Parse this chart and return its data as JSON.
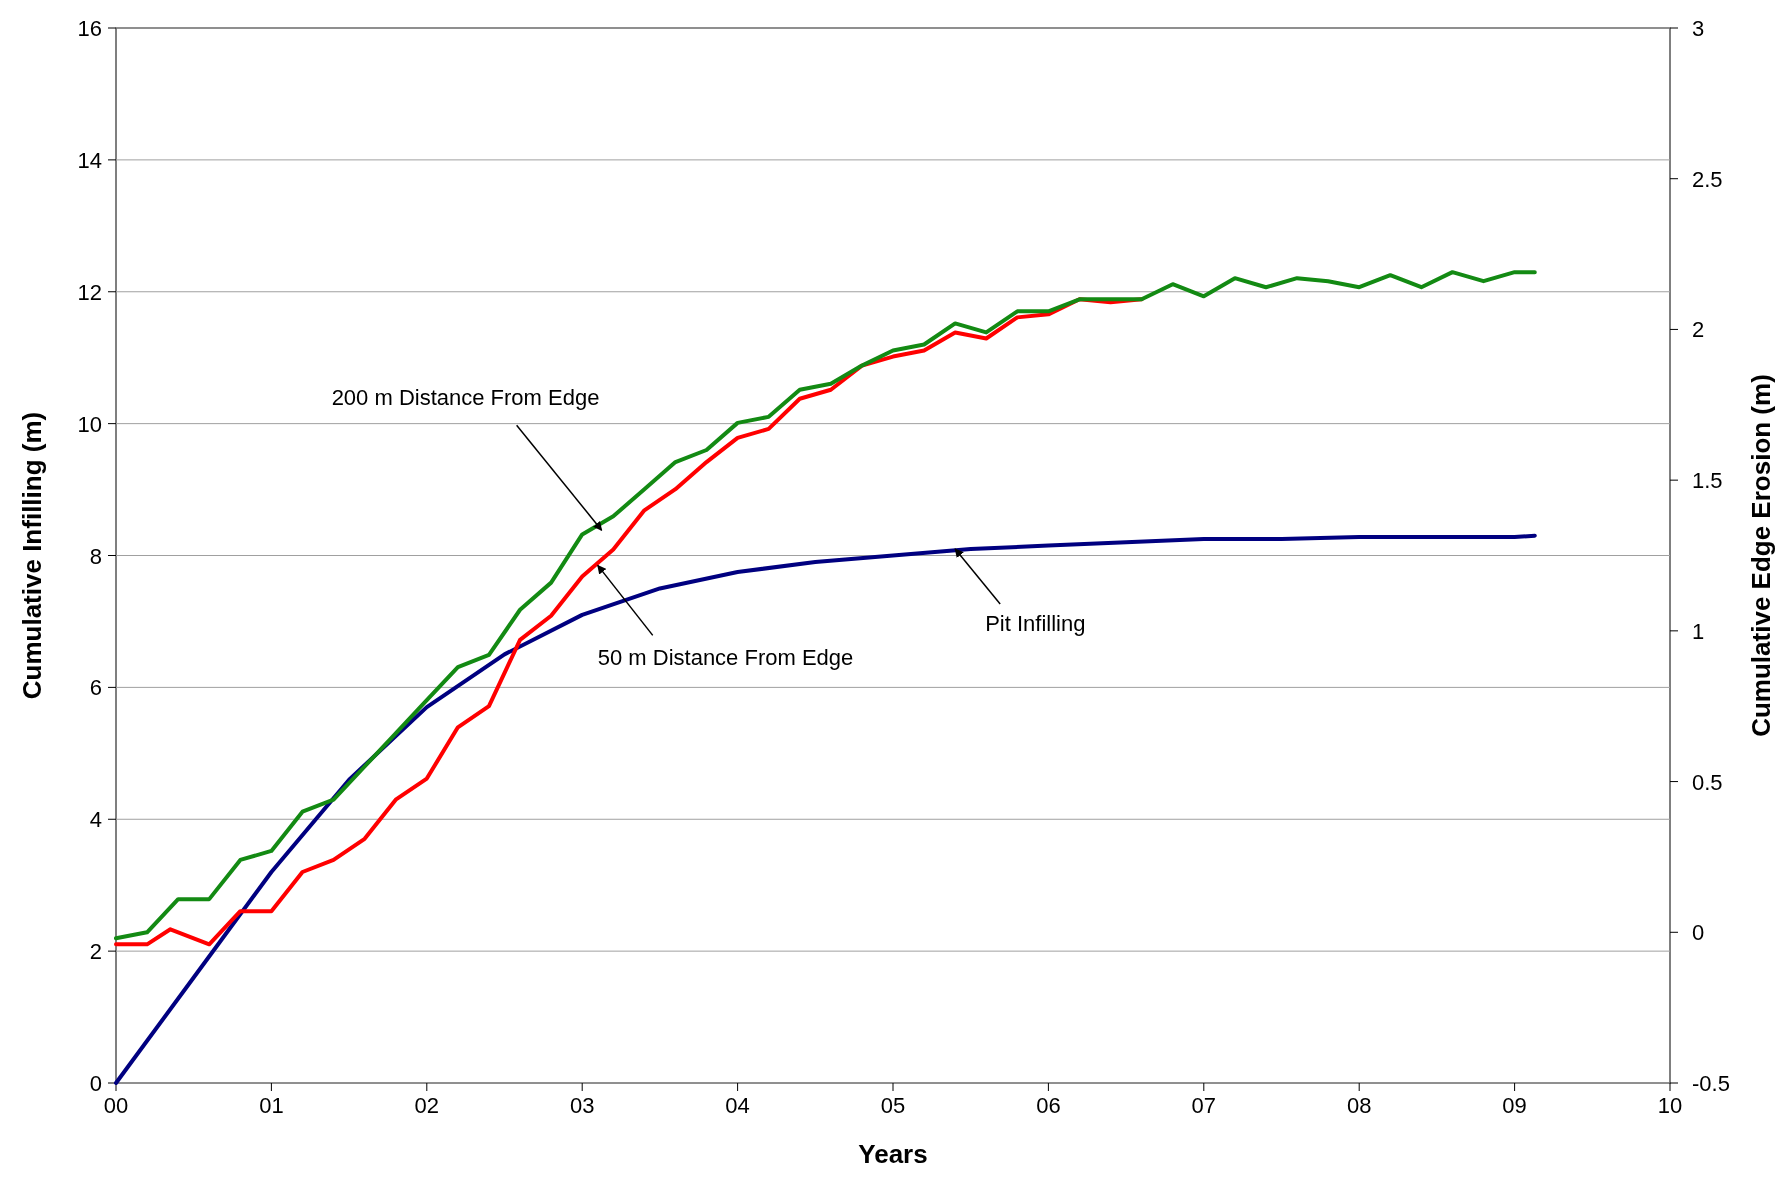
{
  "chart_data": {
    "type": "line",
    "xlabel": "Years",
    "ylabel": "Cumulative Infilling (m)",
    "y2label": "Cumulative Edge Erosion (m)",
    "xlim": [
      0,
      10
    ],
    "xticks": [
      {
        "value": 0,
        "label": "00"
      },
      {
        "value": 1,
        "label": "01"
      },
      {
        "value": 2,
        "label": "02"
      },
      {
        "value": 3,
        "label": "03"
      },
      {
        "value": 4,
        "label": "04"
      },
      {
        "value": 5,
        "label": "05"
      },
      {
        "value": 6,
        "label": "06"
      },
      {
        "value": 7,
        "label": "07"
      },
      {
        "value": 8,
        "label": "08"
      },
      {
        "value": 9,
        "label": "09"
      },
      {
        "value": 10,
        "label": "10"
      }
    ],
    "ylim": [
      0,
      16
    ],
    "yticks": [
      0,
      2,
      4,
      6,
      8,
      10,
      12,
      14,
      16
    ],
    "y2lim": [
      -0.5,
      3
    ],
    "y2ticks": [
      -0.5,
      0,
      0.5,
      1,
      1.5,
      2,
      2.5,
      3
    ],
    "grid": "y",
    "marker": "none",
    "line_style": "solid",
    "series": [
      {
        "color": "#000080",
        "x": [
          0,
          0.5,
          1,
          1.5,
          2,
          2.5,
          3,
          3.5,
          4,
          4.5,
          5,
          5.5,
          6,
          6.5,
          7,
          7.5,
          8,
          8.5,
          9,
          9.13
        ],
        "values": [
          0,
          1.6,
          3.2,
          4.6,
          5.7,
          6.5,
          7.1,
          7.5,
          7.75,
          7.9,
          8,
          8.1,
          8.15,
          8.2,
          8.25,
          8.25,
          8.28,
          8.28,
          8.28,
          8.3
        ]
      },
      {
        "color": "#ff0000",
        "axis": "y2",
        "x": [
          0,
          0.2,
          0.35,
          0.5,
          0.6,
          0.8,
          1,
          1.2,
          1.4,
          1.6,
          1.8,
          2,
          2.2,
          2.4,
          2.6,
          2.8,
          3,
          3.2,
          3.4,
          3.6,
          3.8,
          4,
          4.2,
          4.4,
          4.6,
          4.8,
          5,
          5.2,
          5.4,
          5.6,
          5.8,
          6,
          6.2,
          6.4,
          6.6
        ],
        "values": [
          -0.04,
          -0.04,
          0.01,
          -0.02,
          -0.04,
          0.07,
          0.07,
          0.2,
          0.24,
          0.31,
          0.44,
          0.51,
          0.68,
          0.75,
          0.97,
          1.05,
          1.18,
          1.27,
          1.4,
          1.47,
          1.56,
          1.64,
          1.67,
          1.77,
          1.8,
          1.88,
          1.91,
          1.93,
          1.99,
          1.97,
          2.04,
          2.05,
          2.1,
          2.09,
          2.1
        ]
      },
      {
        "color": "#138a13",
        "axis": "y2",
        "x": [
          0,
          0.2,
          0.4,
          0.6,
          0.8,
          1,
          1.2,
          1.4,
          1.6,
          1.8,
          2,
          2.2,
          2.4,
          2.6,
          2.8,
          3,
          3.2,
          3.4,
          3.6,
          3.8,
          4,
          4.2,
          4.4,
          4.6,
          4.8,
          5,
          5.2,
          5.4,
          5.6,
          5.8,
          6,
          6.2,
          6.4,
          6.6,
          6.8,
          7,
          7.2,
          7.4,
          7.6,
          7.8,
          8,
          8.2,
          8.4,
          8.6,
          8.8,
          9,
          9.13
        ],
        "values": [
          -0.02,
          0,
          0.11,
          0.11,
          0.24,
          0.27,
          0.4,
          0.44,
          0.55,
          0.66,
          0.77,
          0.88,
          0.92,
          1.07,
          1.16,
          1.32,
          1.38,
          1.47,
          1.56,
          1.6,
          1.69,
          1.71,
          1.8,
          1.82,
          1.88,
          1.93,
          1.95,
          2.02,
          1.99,
          2.06,
          2.06,
          2.1,
          2.1,
          2.1,
          2.15,
          2.11,
          2.17,
          2.14,
          2.17,
          2.16,
          2.14,
          2.18,
          2.14,
          2.19,
          2.16,
          2.19,
          2.19
        ]
      }
    ],
    "annotations": [
      "200 m Distance From Edge",
      {
        "text": "50 m Distance From Edge",
        "x": 3.1,
        "y": 7.85
      },
      {
        "text": "Pit Infilling",
        "x": 5.4,
        "y": 8.1
      }
    ]
  }
}
